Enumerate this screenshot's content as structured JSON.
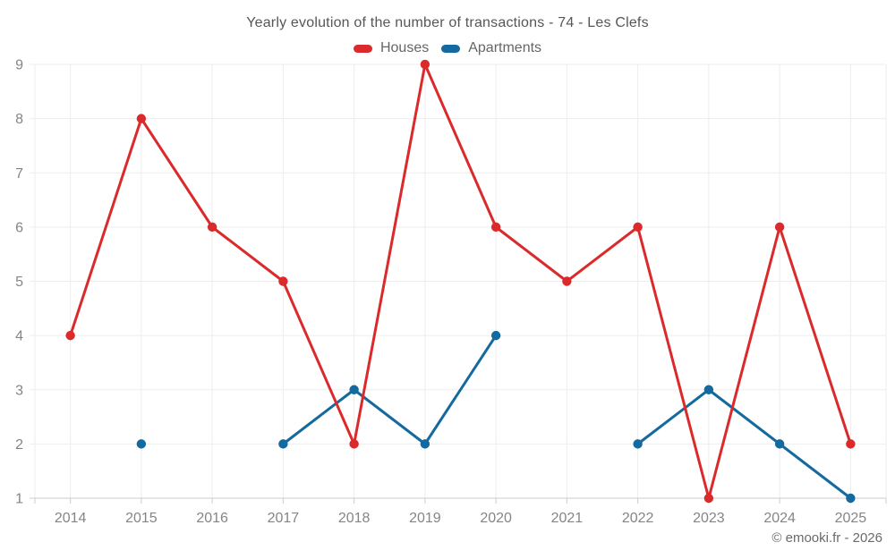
{
  "title": "Yearly evolution of the number of transactions - 74 - Les Clefs",
  "legend": [
    {
      "label": "Houses",
      "color": "#db2a2b"
    },
    {
      "label": "Apartments",
      "color": "#146a9f"
    }
  ],
  "footer": {
    "credit": "© emooki.fr - 2026"
  },
  "colors": {
    "grid": "#ededed",
    "baseline": "#cccccc",
    "tick": "#cccccc",
    "axis_label": "#858585",
    "houses": "#db2a2b",
    "apartments": "#146a9f"
  },
  "chart_data": {
    "type": "line",
    "title": "Yearly evolution of the number of transactions - 74 - Les Clefs",
    "categories": [
      "2014",
      "2015",
      "2016",
      "2017",
      "2018",
      "2019",
      "2020",
      "2021",
      "2022",
      "2023",
      "2024",
      "2025"
    ],
    "series": [
      {
        "name": "Houses",
        "color": "#db2a2b",
        "values": [
          4,
          8,
          6,
          5,
          2,
          9,
          6,
          5,
          6,
          1,
          6,
          2
        ]
      },
      {
        "name": "Apartments",
        "color": "#146a9f",
        "values": [
          null,
          2,
          null,
          2,
          3,
          2,
          4,
          null,
          2,
          3,
          2,
          1
        ]
      }
    ],
    "xlabel": "",
    "ylabel": "",
    "ylim": [
      1,
      9
    ],
    "yticks": [
      1,
      2,
      3,
      4,
      5,
      6,
      7,
      8,
      9
    ],
    "grid": true,
    "legend_position": "top"
  }
}
